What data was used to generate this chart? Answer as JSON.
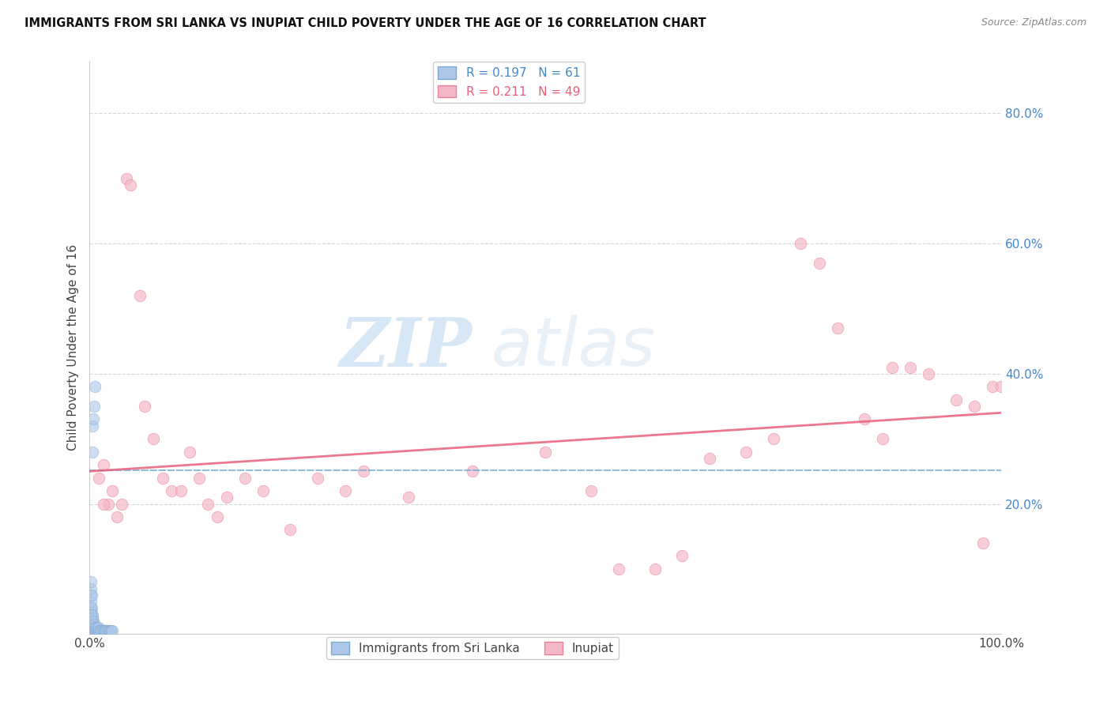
{
  "title": "IMMIGRANTS FROM SRI LANKA VS INUPIAT CHILD POVERTY UNDER THE AGE OF 16 CORRELATION CHART",
  "source": "Source: ZipAtlas.com",
  "ylabel": "Child Poverty Under the Age of 16",
  "xlim": [
    0.0,
    1.0
  ],
  "ylim": [
    0.0,
    0.88
  ],
  "x_ticks": [
    0.0,
    0.2,
    0.4,
    0.6,
    0.8,
    1.0
  ],
  "x_tick_labels": [
    "0.0%",
    "",
    "",
    "",
    "",
    "100.0%"
  ],
  "y_ticks": [
    0.0,
    0.2,
    0.4,
    0.6,
    0.8
  ],
  "y_tick_labels_right": [
    "",
    "20.0%",
    "40.0%",
    "60.0%",
    "80.0%"
  ],
  "watermark_zip": "ZIP",
  "watermark_atlas": "atlas",
  "blue_color": "#aec6e8",
  "blue_edge_color": "#7aaad0",
  "pink_color": "#f4b8c8",
  "pink_edge_color": "#e8809a",
  "blue_line_color": "#7aaad0",
  "pink_line_color": "#e8607a",
  "sri_lanka_x": [
    0.001,
    0.001,
    0.001,
    0.001,
    0.001,
    0.001,
    0.001,
    0.001,
    0.001,
    0.001,
    0.001,
    0.001,
    0.002,
    0.002,
    0.002,
    0.002,
    0.002,
    0.002,
    0.002,
    0.002,
    0.003,
    0.003,
    0.003,
    0.003,
    0.003,
    0.003,
    0.004,
    0.004,
    0.004,
    0.005,
    0.005,
    0.005,
    0.006,
    0.006,
    0.007,
    0.007,
    0.008,
    0.008,
    0.009,
    0.01,
    0.01,
    0.011,
    0.012,
    0.013,
    0.014,
    0.015,
    0.016,
    0.017,
    0.018,
    0.019,
    0.02,
    0.021,
    0.022,
    0.023,
    0.024,
    0.025,
    0.003,
    0.003,
    0.004,
    0.005,
    0.006
  ],
  "sri_lanka_y": [
    0.005,
    0.01,
    0.015,
    0.02,
    0.025,
    0.03,
    0.035,
    0.04,
    0.05,
    0.06,
    0.07,
    0.08,
    0.005,
    0.01,
    0.015,
    0.02,
    0.025,
    0.03,
    0.04,
    0.06,
    0.005,
    0.01,
    0.015,
    0.02,
    0.025,
    0.03,
    0.005,
    0.01,
    0.02,
    0.005,
    0.01,
    0.015,
    0.005,
    0.01,
    0.005,
    0.01,
    0.005,
    0.01,
    0.005,
    0.005,
    0.01,
    0.005,
    0.005,
    0.005,
    0.005,
    0.005,
    0.005,
    0.005,
    0.005,
    0.005,
    0.005,
    0.005,
    0.005,
    0.005,
    0.005,
    0.005,
    0.32,
    0.28,
    0.33,
    0.35,
    0.38
  ],
  "inupiat_x": [
    0.01,
    0.015,
    0.02,
    0.025,
    0.03,
    0.035,
    0.04,
    0.045,
    0.055,
    0.06,
    0.07,
    0.08,
    0.09,
    0.1,
    0.11,
    0.12,
    0.13,
    0.14,
    0.15,
    0.17,
    0.19,
    0.22,
    0.25,
    0.28,
    0.3,
    0.35,
    0.42,
    0.5,
    0.55,
    0.58,
    0.62,
    0.65,
    0.68,
    0.72,
    0.75,
    0.78,
    0.8,
    0.82,
    0.85,
    0.87,
    0.88,
    0.9,
    0.92,
    0.95,
    0.97,
    0.98,
    0.99,
    1.0,
    0.015
  ],
  "inupiat_y": [
    0.24,
    0.26,
    0.2,
    0.22,
    0.18,
    0.2,
    0.7,
    0.69,
    0.52,
    0.35,
    0.3,
    0.24,
    0.22,
    0.22,
    0.28,
    0.24,
    0.2,
    0.18,
    0.21,
    0.24,
    0.22,
    0.16,
    0.24,
    0.22,
    0.25,
    0.21,
    0.25,
    0.28,
    0.22,
    0.1,
    0.1,
    0.12,
    0.27,
    0.28,
    0.3,
    0.6,
    0.57,
    0.47,
    0.33,
    0.3,
    0.41,
    0.41,
    0.4,
    0.36,
    0.35,
    0.14,
    0.38,
    0.38,
    0.2
  ],
  "sri_lanka_trend": [
    0.252,
    0.0,
    0.252,
    1.8
  ],
  "inupiat_trend": [
    0.25,
    0.0,
    0.34,
    1.0
  ]
}
